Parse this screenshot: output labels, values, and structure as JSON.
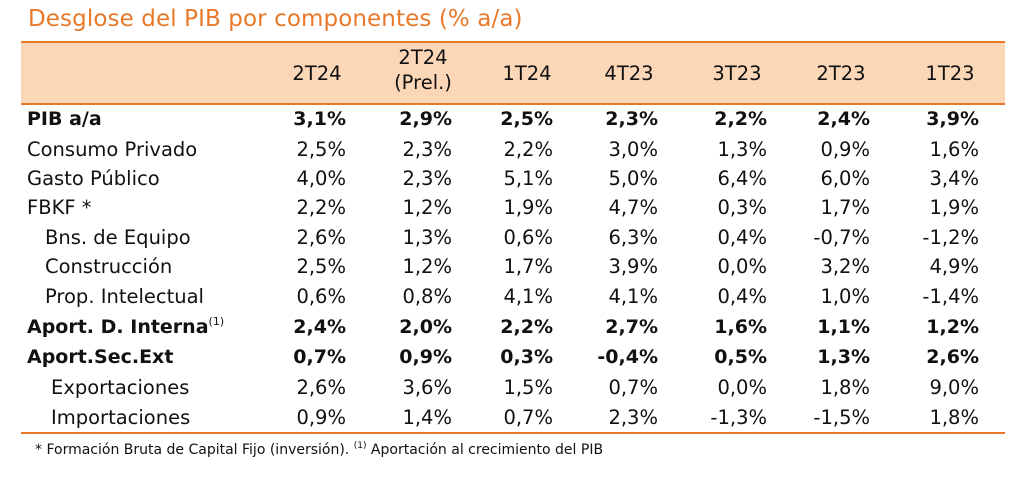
{
  "title": "Desglose del PIB por componentes (% a/a)",
  "columns": [
    {
      "line1": "2T24",
      "line2": ""
    },
    {
      "line1": "2T24",
      "line2": "(Prel.)"
    },
    {
      "line1": "1T24",
      "line2": ""
    },
    {
      "line1": "4T23",
      "line2": ""
    },
    {
      "line1": "3T23",
      "line2": ""
    },
    {
      "line1": "2T23",
      "line2": ""
    },
    {
      "line1": "1T23",
      "line2": ""
    }
  ],
  "rows": [
    {
      "label": "PIB a/a",
      "sup": "",
      "indent": 0,
      "bold": true,
      "values": [
        "3,1%",
        "2,9%",
        "2,5%",
        "2,3%",
        "2,2%",
        "2,4%",
        "3,9%"
      ]
    },
    {
      "label": "Consumo Privado",
      "sup": "",
      "indent": 0,
      "bold": false,
      "values": [
        "2,5%",
        "2,3%",
        "2,2%",
        "3,0%",
        "1,3%",
        "0,9%",
        "1,6%"
      ]
    },
    {
      "label": "Gasto Público",
      "sup": "",
      "indent": 0,
      "bold": false,
      "values": [
        "4,0%",
        "2,3%",
        "5,1%",
        "5,0%",
        "6,4%",
        "6,0%",
        "3,4%"
      ]
    },
    {
      "label": "FBKF *",
      "sup": "",
      "indent": 0,
      "bold": false,
      "values": [
        "2,2%",
        "1,2%",
        "1,9%",
        "4,7%",
        "0,3%",
        "1,7%",
        "1,9%"
      ]
    },
    {
      "label": "Bns. de Equipo",
      "sup": "",
      "indent": 1,
      "bold": false,
      "values": [
        "2,6%",
        "1,3%",
        "0,6%",
        "6,3%",
        "0,4%",
        "-0,7%",
        "-1,2%"
      ]
    },
    {
      "label": "Construcción",
      "sup": "",
      "indent": 1,
      "bold": false,
      "values": [
        "2,5%",
        "1,2%",
        "1,7%",
        "3,9%",
        "0,0%",
        "3,2%",
        "4,9%"
      ]
    },
    {
      "label": "Prop. Intelectual",
      "sup": "",
      "indent": 1,
      "bold": false,
      "values": [
        "0,6%",
        "0,8%",
        "4,1%",
        "4,1%",
        "0,4%",
        "1,0%",
        "-1,4%"
      ]
    },
    {
      "label": "Aport. D. Interna",
      "sup": "(1)",
      "indent": 0,
      "bold": true,
      "values": [
        "2,4%",
        "2,0%",
        "2,2%",
        "2,7%",
        "1,6%",
        "1,1%",
        "1,2%"
      ]
    },
    {
      "label": "Aport.Sec.Ext",
      "sup": "",
      "indent": 0,
      "bold": true,
      "values": [
        "0,7%",
        "0,9%",
        "0,3%",
        "-0,4%",
        "0,5%",
        "1,3%",
        "2,6%"
      ]
    },
    {
      "label": "Exportaciones",
      "sup": "",
      "indent": 2,
      "bold": false,
      "values": [
        "2,6%",
        "3,6%",
        "1,5%",
        "0,7%",
        "0,0%",
        "1,8%",
        "9,0%"
      ]
    },
    {
      "label": "Importaciones",
      "sup": "",
      "indent": 2,
      "bold": false,
      "values": [
        "0,9%",
        "1,4%",
        "0,7%",
        "2,3%",
        "-1,3%",
        "-1,5%",
        "1,8%"
      ]
    }
  ],
  "footnote": {
    "part1": "* Formación  Bruta de Capital Fijo (inversión).",
    "sup": "(1)",
    "part2": "Aportación al crecimiento del PIB"
  },
  "colors": {
    "accent": "#e8792a",
    "header_fill": "#fbd7b7"
  }
}
